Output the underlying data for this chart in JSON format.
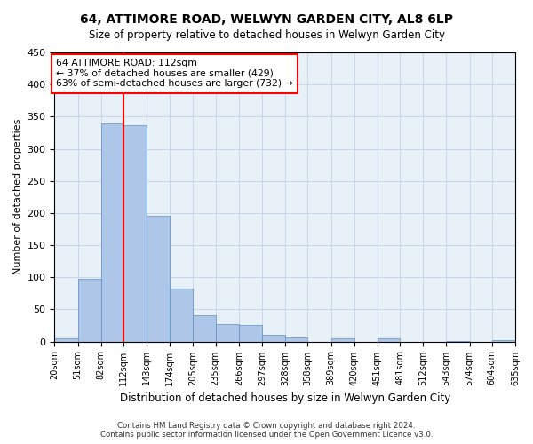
{
  "title": "64, ATTIMORE ROAD, WELWYN GARDEN CITY, AL8 6LP",
  "subtitle": "Size of property relative to detached houses in Welwyn Garden City",
  "xlabel": "Distribution of detached houses by size in Welwyn Garden City",
  "ylabel": "Number of detached properties",
  "footer_line1": "Contains HM Land Registry data © Crown copyright and database right 2024.",
  "footer_line2": "Contains public sector information licensed under the Open Government Licence v3.0.",
  "bar_edges": [
    20,
    51,
    82,
    112,
    143,
    174,
    205,
    235,
    266,
    297,
    328,
    358,
    389,
    420,
    451,
    481,
    512,
    543,
    574,
    604,
    635
  ],
  "bar_heights": [
    5,
    97,
    340,
    337,
    196,
    82,
    41,
    27,
    25,
    11,
    6,
    0,
    5,
    0,
    5,
    0,
    0,
    1,
    0,
    2
  ],
  "bar_color": "#aec6e8",
  "bar_edge_color": "#5a8fc3",
  "bar_linewidth": 0.5,
  "grid_color": "#c8d8e8",
  "background_color": "#e8f0f8",
  "red_line_x": 112,
  "annotation_text": "64 ATTIMORE ROAD: 112sqm\n← 37% of detached houses are smaller (429)\n63% of semi-detached houses are larger (732) →",
  "annotation_box_color": "white",
  "annotation_box_edgecolor": "red",
  "ylim": [
    0,
    450
  ],
  "yticks": [
    0,
    50,
    100,
    150,
    200,
    250,
    300,
    350,
    400,
    450
  ],
  "tick_labels": [
    "20sqm",
    "51sqm",
    "82sqm",
    "112sqm",
    "143sqm",
    "174sqm",
    "205sqm",
    "235sqm",
    "266sqm",
    "297sqm",
    "328sqm",
    "358sqm",
    "389sqm",
    "420sqm",
    "451sqm",
    "481sqm",
    "512sqm",
    "543sqm",
    "574sqm",
    "604sqm",
    "635sqm"
  ]
}
